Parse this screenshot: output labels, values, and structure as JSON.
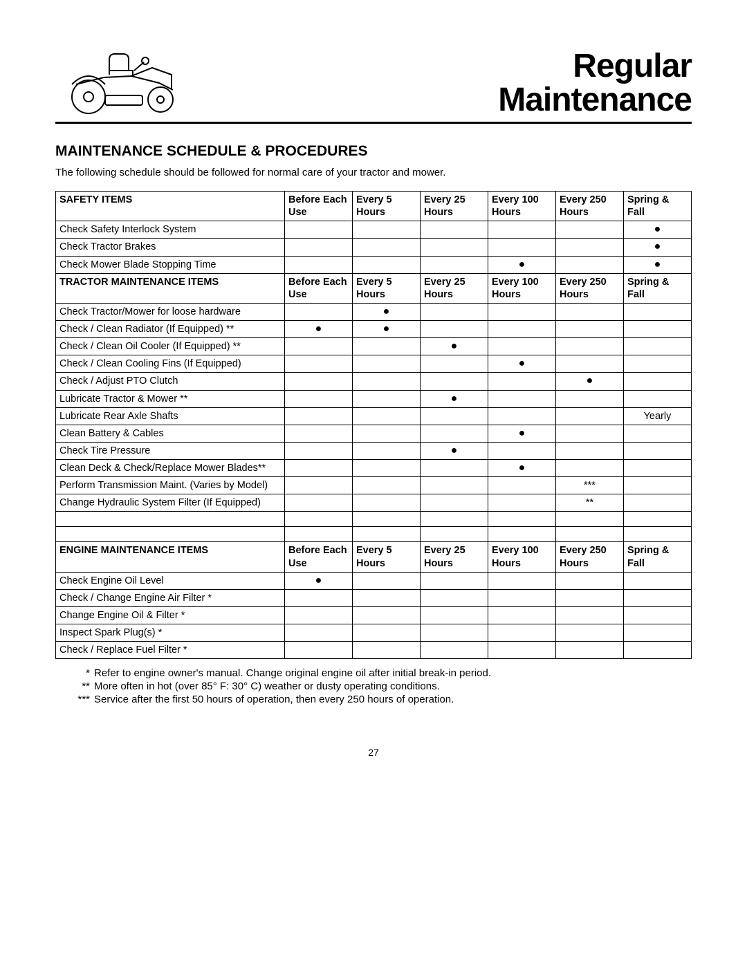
{
  "page": {
    "title_line1": "Regular",
    "title_line2": "Maintenance",
    "section_heading": "MAINTENANCE SCHEDULE & PROCEDURES",
    "intro": "The following schedule should be followed for normal care of your tractor and mower.",
    "page_number": "27"
  },
  "columns": [
    "Before Each Use",
    "Every 5 Hours",
    "Every 25 Hours",
    "Every 100 Hours",
    "Every 250 Hours",
    "Spring & Fall"
  ],
  "dot": "●",
  "sections": [
    {
      "heading": "SAFETY ITEMS",
      "rows": [
        {
          "label": "Check Safety Interlock System",
          "marks": [
            "",
            "",
            "",
            "",
            "",
            "●"
          ]
        },
        {
          "label": "Check Tractor Brakes",
          "marks": [
            "",
            "",
            "",
            "",
            "",
            "●"
          ]
        },
        {
          "label": "Check Mower Blade Stopping Time",
          "marks": [
            "",
            "",
            "",
            "●",
            "",
            "●"
          ]
        }
      ]
    },
    {
      "heading": "TRACTOR MAINTENANCE ITEMS",
      "rows": [
        {
          "label": "Check Tractor/Mower for loose hardware",
          "marks": [
            "",
            "●",
            "",
            "",
            "",
            ""
          ]
        },
        {
          "label": "Check / Clean Radiator  (If Equipped) **",
          "marks": [
            "●",
            "●",
            "",
            "",
            "",
            ""
          ]
        },
        {
          "label": "Check / Clean Oil Cooler (If Equipped) **",
          "marks": [
            "",
            "",
            "●",
            "",
            "",
            ""
          ]
        },
        {
          "label": "Check / Clean Cooling Fins (If Equipped)",
          "marks": [
            "",
            "",
            "",
            "●",
            "",
            ""
          ]
        },
        {
          "label": "Check / Adjust PTO Clutch",
          "marks": [
            "",
            "",
            "",
            "",
            "●",
            ""
          ]
        },
        {
          "label": "Lubricate Tractor & Mower **",
          "marks": [
            "",
            "",
            "●",
            "",
            "",
            ""
          ]
        },
        {
          "label": "Lubricate Rear Axle Shafts",
          "marks": [
            "",
            "",
            "",
            "",
            "",
            "Yearly"
          ]
        },
        {
          "label": "Clean Battery & Cables",
          "marks": [
            "",
            "",
            "",
            "●",
            "",
            ""
          ]
        },
        {
          "label": "Check Tire Pressure",
          "marks": [
            "",
            "",
            "●",
            "",
            "",
            ""
          ]
        },
        {
          "label": "Clean Deck & Check/Replace Mower Blades**",
          "marks": [
            "",
            "",
            "",
            "●",
            "",
            ""
          ]
        },
        {
          "label": "Perform Transmission Maint. (Varies by Model)",
          "marks": [
            "",
            "",
            "",
            "",
            "***",
            ""
          ]
        },
        {
          "label": "Change Hydraulic System Filter (If Equipped)",
          "marks": [
            "",
            "",
            "",
            "",
            "**",
            ""
          ]
        }
      ],
      "trailing_blank_rows": 2
    },
    {
      "heading": "ENGINE MAINTENANCE ITEMS",
      "rows": [
        {
          "label": "Check Engine Oil Level",
          "marks": [
            "●",
            "",
            "",
            "",
            "",
            ""
          ]
        },
        {
          "label": "Check / Change Engine Air Filter *",
          "marks": [
            "",
            "",
            "",
            "",
            "",
            ""
          ]
        },
        {
          "label": "Change Engine Oil & Filter *",
          "marks": [
            "",
            "",
            "",
            "",
            "",
            ""
          ]
        },
        {
          "label": "Inspect Spark Plug(s) *",
          "marks": [
            "",
            "",
            "",
            "",
            "",
            ""
          ]
        },
        {
          "label": "Check / Replace Fuel Filter *",
          "marks": [
            "",
            "",
            "",
            "",
            "",
            ""
          ]
        }
      ]
    }
  ],
  "footnotes": [
    {
      "mark": "*",
      "text": "Refer to engine owner's manual.  Change original engine oil after initial break-in period."
    },
    {
      "mark": "**",
      "text": "More often in hot (over 85° F: 30° C) weather or dusty operating conditions."
    },
    {
      "mark": "***",
      "text": "Service after the first 50 hours of operation, then every 250 hours of operation."
    }
  ]
}
